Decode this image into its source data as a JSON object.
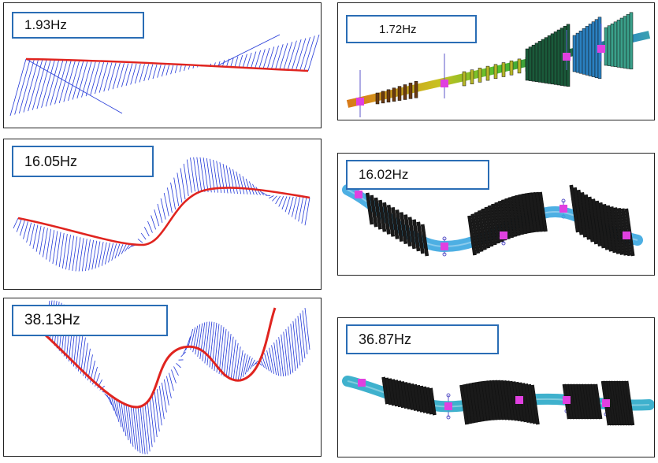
{
  "figure": {
    "colors": {
      "shaft_line": "#e0241f",
      "hatch": "#2238d8",
      "label_border": "#2a6db5",
      "bearing": "#e040e0",
      "spring": "#5b55c8"
    }
  },
  "left_panels": [
    {
      "frequency_label": "1.93Hz"
    },
    {
      "frequency_label": "16.05Hz"
    },
    {
      "frequency_label": "38.13Hz"
    }
  ],
  "right_panels": [
    {
      "frequency_label": "1.72Hz"
    },
    {
      "frequency_label": "16.02Hz"
    },
    {
      "frequency_label": "36.87Hz"
    }
  ]
}
